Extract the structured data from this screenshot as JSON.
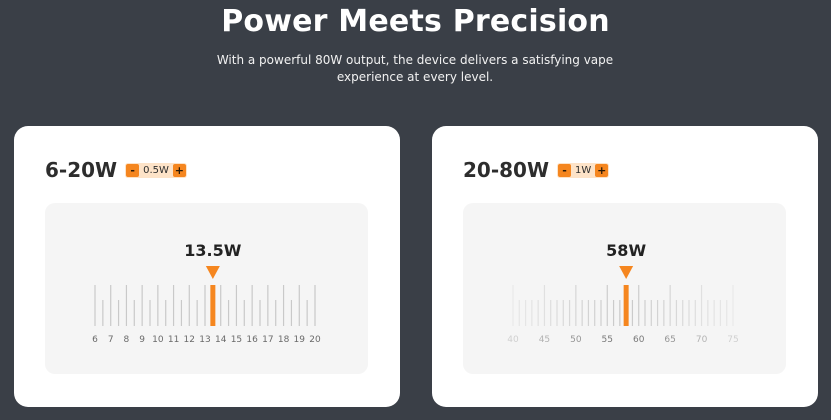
{
  "header": {
    "title": "Power Meets Precision",
    "subtitle": "With a powerful 80W output, the device delivers a satisfying vape experience at every level."
  },
  "accent_color": "#f5861f",
  "gauges": [
    {
      "range_label": "6-20W",
      "step_label": "0.5W",
      "minus_label": "-",
      "plus_label": "+",
      "value": 13.5,
      "value_label": "13.5W",
      "scale_min": 6,
      "scale_max": 20,
      "step": 0.5,
      "labels": [
        "6",
        "7",
        "8",
        "9",
        "10",
        "11",
        "12",
        "13",
        "14",
        "15",
        "16",
        "17",
        "18",
        "19",
        "20"
      ],
      "fade": false
    },
    {
      "range_label": "20-80W",
      "step_label": "1W",
      "minus_label": "-",
      "plus_label": "+",
      "value": 58,
      "value_label": "58W",
      "scale_min": 40,
      "scale_max": 75,
      "step": 1,
      "labels": [
        "40",
        "45",
        "50",
        "55",
        "60",
        "65",
        "70",
        "75"
      ],
      "fade": true
    }
  ]
}
